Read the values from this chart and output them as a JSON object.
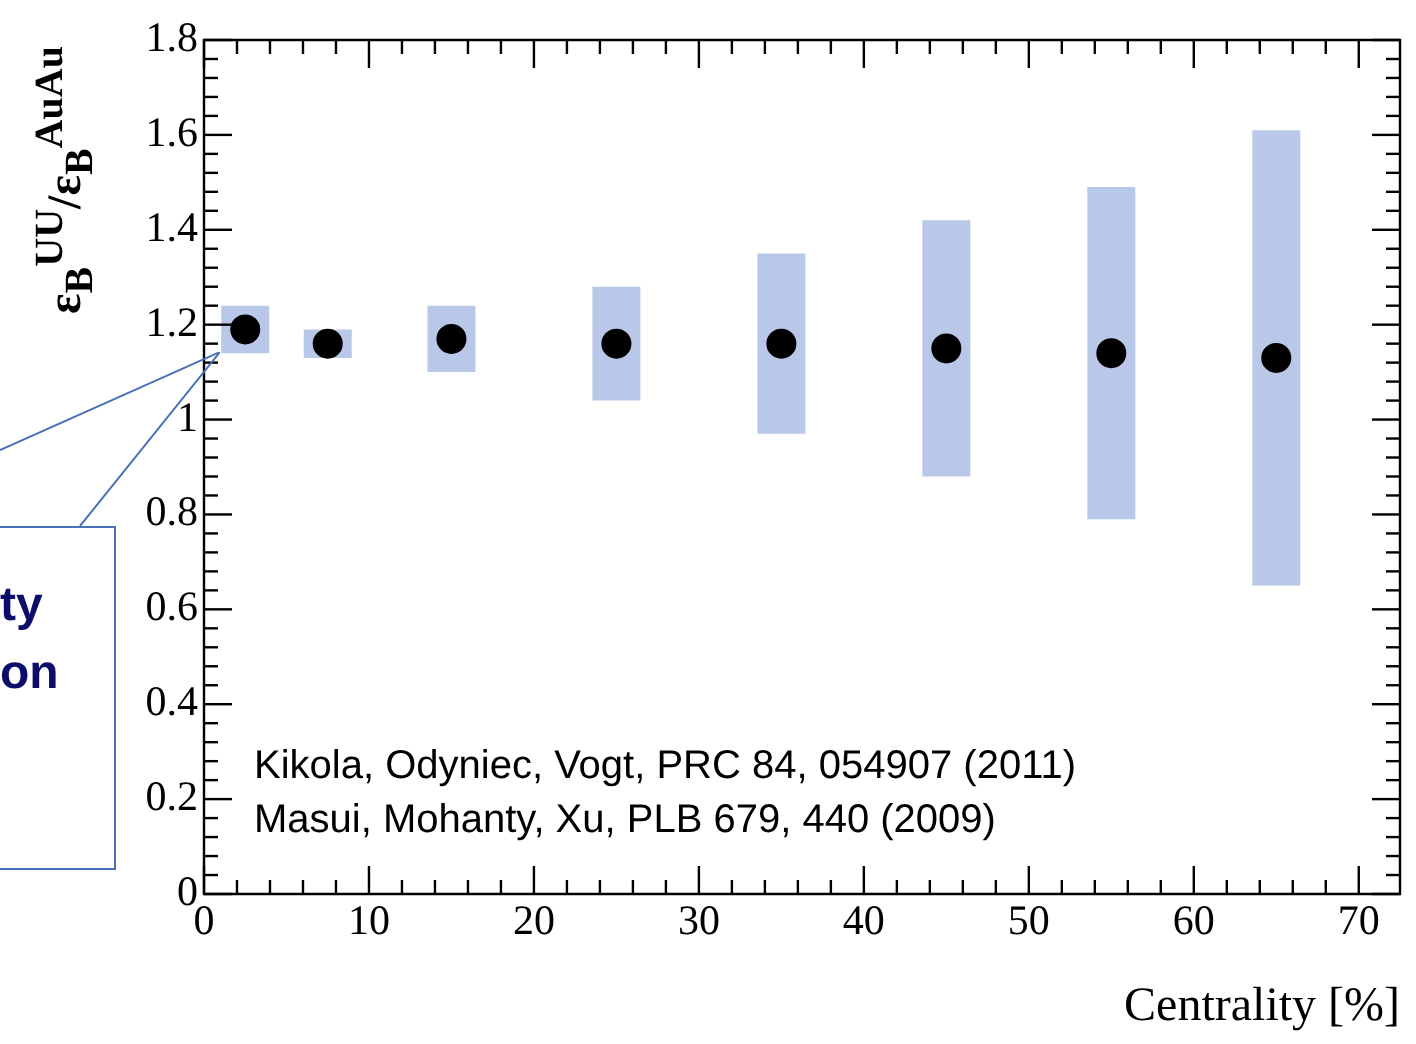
{
  "chart_data": {
    "type": "scatter",
    "xlabel": "Centrality [%]",
    "ylabel": "ε$_{B}$$^{UU}$/ε$_{B}$$^{AuAu}$",
    "x": [
      2.5,
      7.5,
      15,
      25,
      35,
      45,
      55,
      65
    ],
    "series": [
      {
        "color": "#000000",
        "values": [
          1.19,
          1.16,
          1.17,
          1.16,
          1.16,
          1.15,
          1.14,
          1.13
        ],
        "errors": [
          [
            1.14,
            1.24
          ],
          [
            1.13,
            1.19
          ],
          [
            1.1,
            1.24
          ],
          [
            1.04,
            1.28
          ],
          [
            0.97,
            1.35
          ],
          [
            0.88,
            1.42
          ],
          [
            0.79,
            1.49
          ],
          [
            0.65,
            1.61
          ]
        ]
      }
    ],
    "xlim": [
      0,
      72.5
    ],
    "ylim": [
      0,
      1.8
    ],
    "xticks": [
      0,
      10,
      20,
      30,
      40,
      50,
      60,
      70
    ],
    "yticks": [
      0,
      0.2,
      0.4,
      0.6,
      0.8,
      1,
      1.2,
      1.4,
      1.6,
      1.8
    ],
    "marker": "circle",
    "legend": false,
    "grid": false,
    "annotations": [
      "ty\non",
      "Kikola, Odyniec, Vogt, PRC 84, 054907 (2011)",
      "Masui, Mohanty, Xu, PLB 679, 440 (2009)"
    ]
  }
}
